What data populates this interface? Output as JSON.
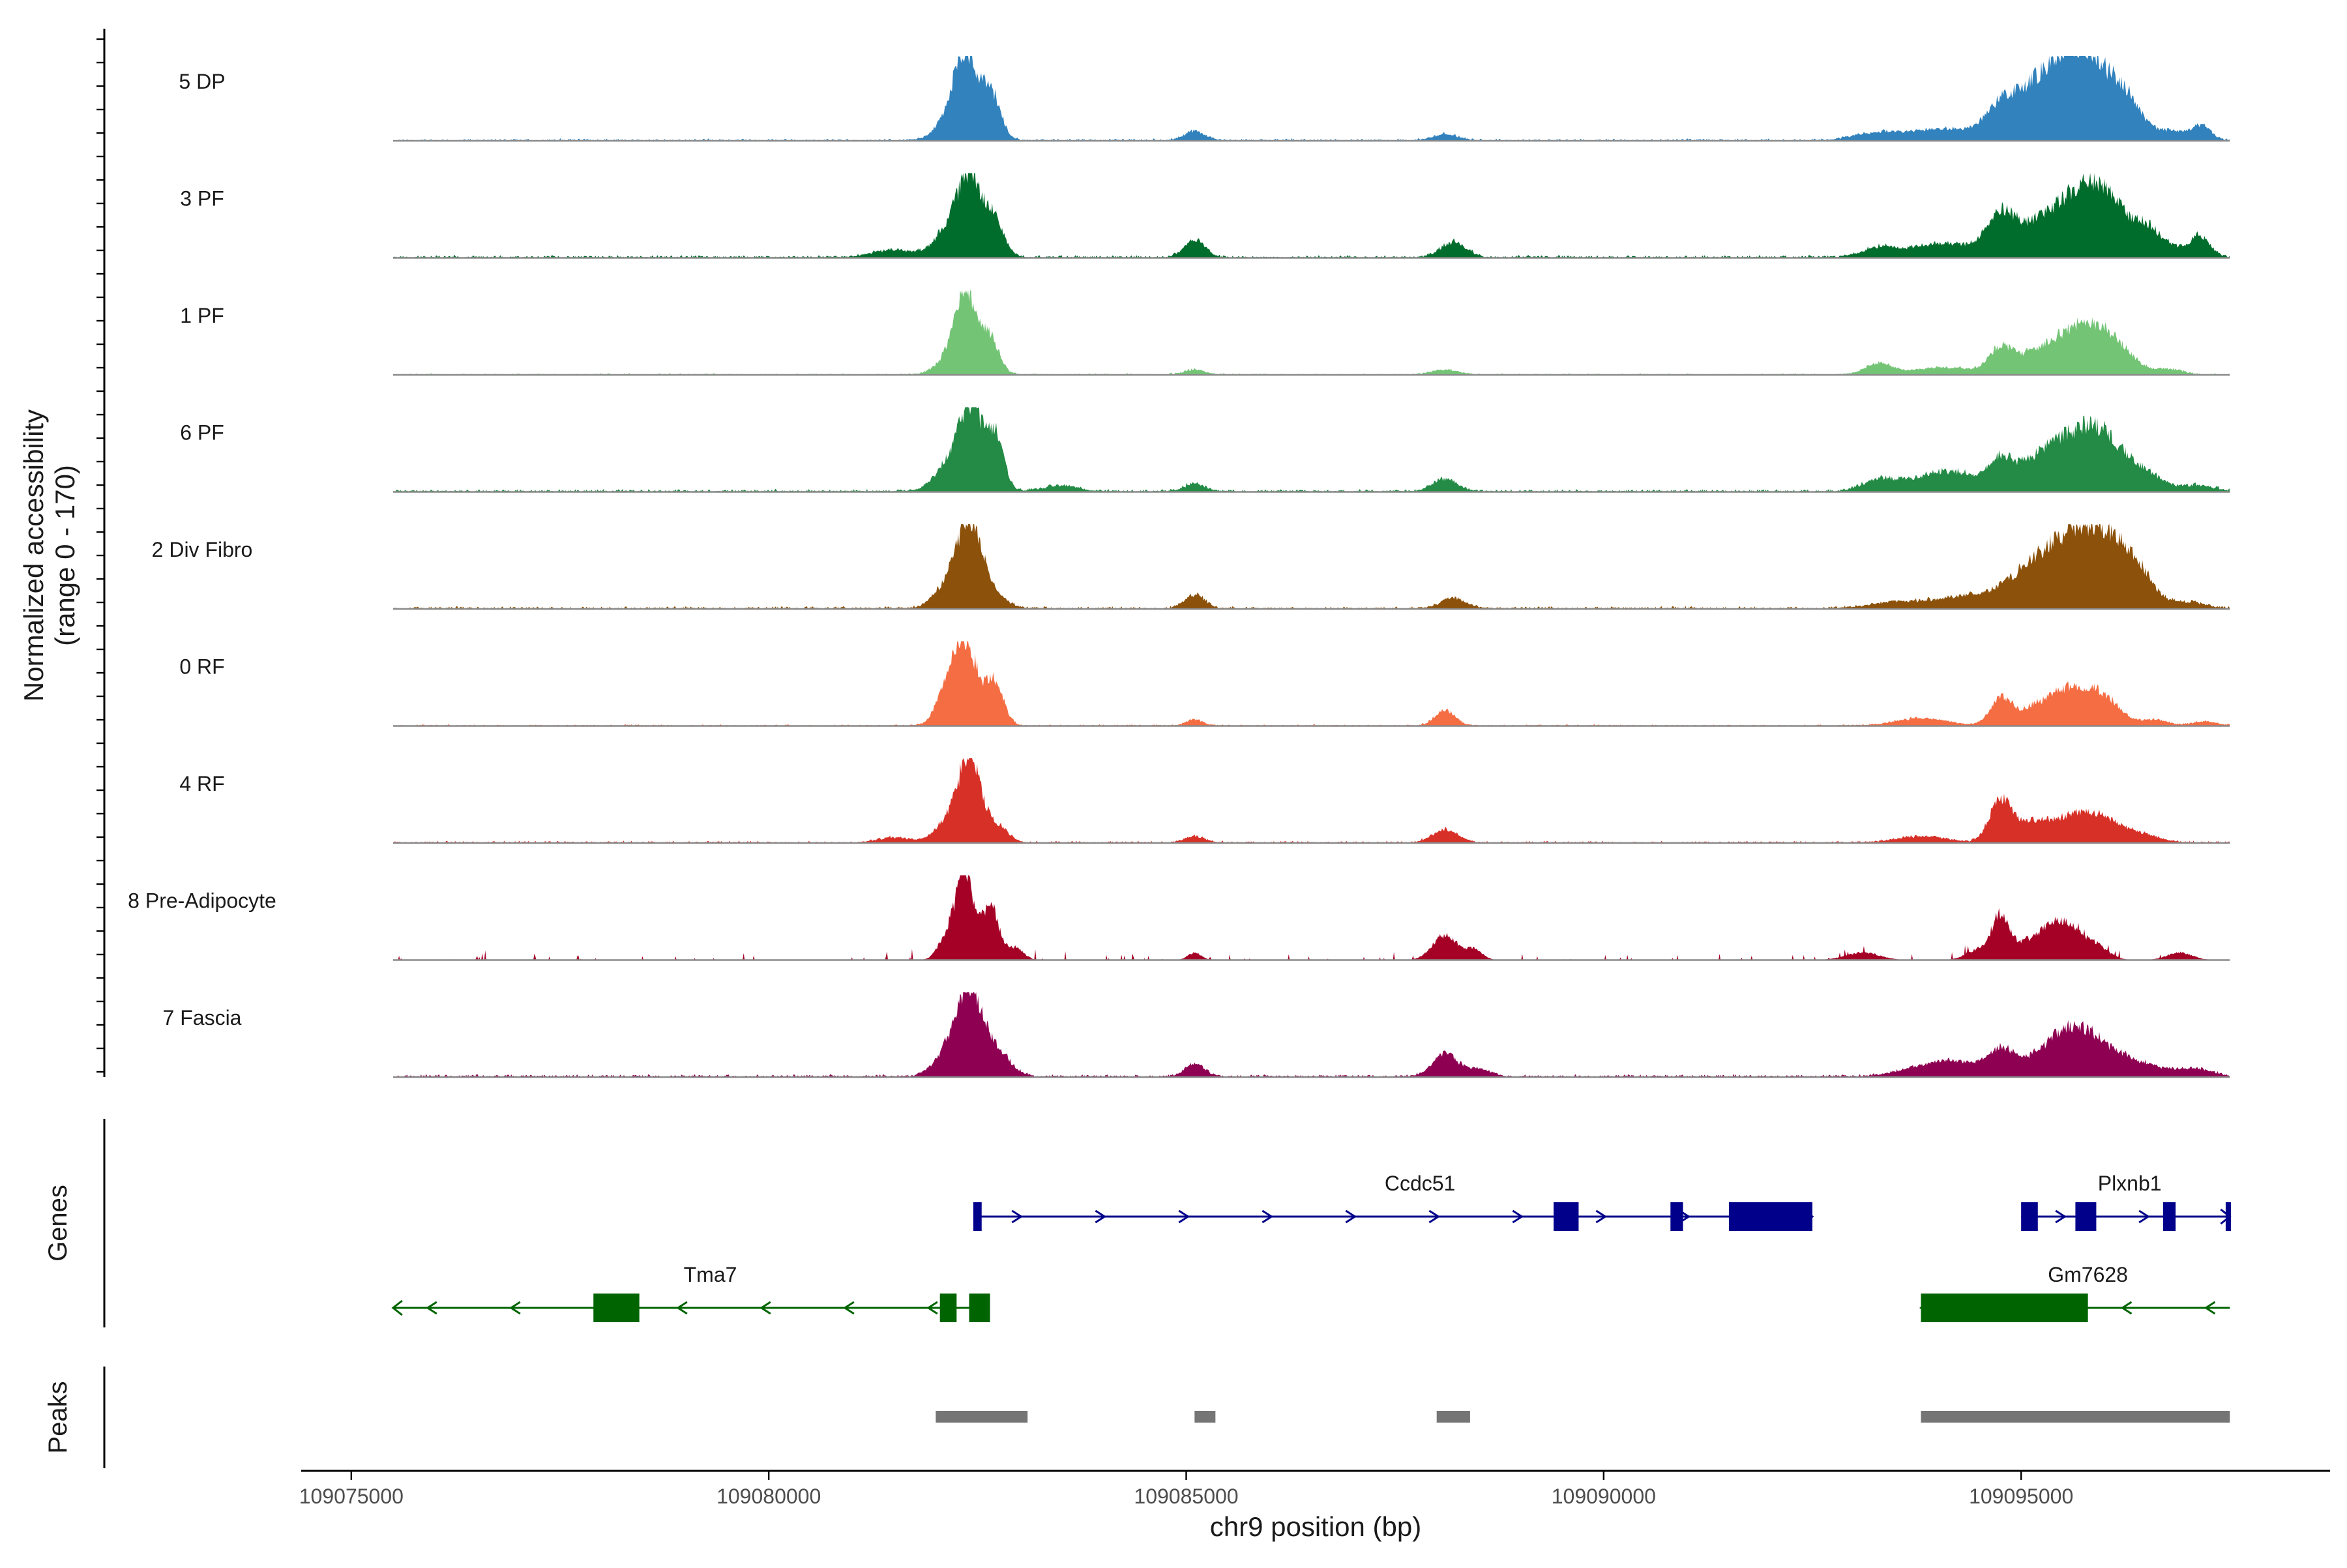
{
  "chart_data": {
    "type": "area",
    "title": "",
    "ylabel": "Normalized accessibility\n(range 0 - 170)",
    "ylabel_lines": [
      "Normalized accessibility",
      "(range 0 - 170)"
    ],
    "ylim": [
      0,
      170
    ],
    "xlabel": "chr9 position (bp)",
    "xlim": [
      109074400,
      109098700
    ],
    "x_ticks": [
      109075000,
      109080000,
      109085000,
      109090000,
      109095000
    ],
    "x_tick_labels": [
      "109075000",
      "109080000",
      "109085000",
      "109090000",
      "109095000"
    ],
    "track_range": [
      109075500,
      109097500
    ],
    "series": [
      {
        "name": "5 DP",
        "color": "#3182bd",
        "peaks": [
          [
            109082350,
            170,
            140
          ],
          [
            109082650,
            95,
            120
          ],
          [
            109082100,
            25,
            150
          ],
          [
            109085100,
            18,
            120
          ],
          [
            109088100,
            12,
            150
          ],
          [
            109093300,
            14,
            300
          ],
          [
            109094100,
            22,
            400
          ],
          [
            109094750,
            38,
            160
          ],
          [
            109095050,
            60,
            300
          ],
          [
            109095450,
            95,
            300
          ],
          [
            109095800,
            125,
            280
          ],
          [
            109096250,
            70,
            200
          ],
          [
            109096800,
            18,
            160
          ],
          [
            109097150,
            28,
            120
          ]
        ],
        "noise": 4,
        "seed": 11
      },
      {
        "name": "3 PF",
        "color": "#006d2c",
        "peaks": [
          [
            109082400,
            170,
            140
          ],
          [
            109082100,
            45,
            140
          ],
          [
            109082700,
            70,
            120
          ],
          [
            109081500,
            15,
            250
          ],
          [
            109085100,
            35,
            120
          ],
          [
            109088200,
            30,
            150
          ],
          [
            109093300,
            18,
            200
          ],
          [
            109094100,
            28,
            400
          ],
          [
            109094750,
            70,
            160
          ],
          [
            109095200,
            55,
            300
          ],
          [
            109095700,
            95,
            300
          ],
          [
            109096050,
            85,
            250
          ],
          [
            109096500,
            45,
            150
          ],
          [
            109096800,
            20,
            200
          ],
          [
            109097150,
            38,
            120
          ]
        ],
        "noise": 5,
        "seed": 23
      },
      {
        "name": "1 PF",
        "color": "#74c476",
        "peaks": [
          [
            109082350,
            170,
            130
          ],
          [
            109082650,
            70,
            110
          ],
          [
            109082100,
            20,
            140
          ],
          [
            109085100,
            10,
            120
          ],
          [
            109088100,
            10,
            150
          ],
          [
            109093300,
            22,
            150
          ],
          [
            109094100,
            14,
            400
          ],
          [
            109094750,
            45,
            130
          ],
          [
            109095150,
            35,
            250
          ],
          [
            109095700,
            85,
            300
          ],
          [
            109096100,
            45,
            250
          ],
          [
            109096800,
            10,
            150
          ]
        ],
        "noise": 3,
        "seed": 37
      },
      {
        "name": "6 PF",
        "color": "#238b45",
        "peaks": [
          [
            109082400,
            170,
            140
          ],
          [
            109082100,
            40,
            150
          ],
          [
            109082700,
            110,
            110
          ],
          [
            109083500,
            12,
            200
          ],
          [
            109085100,
            15,
            120
          ],
          [
            109088100,
            25,
            150
          ],
          [
            109093300,
            20,
            200
          ],
          [
            109094100,
            40,
            400
          ],
          [
            109094750,
            45,
            130
          ],
          [
            109095200,
            55,
            300
          ],
          [
            109095700,
            90,
            300
          ],
          [
            109096050,
            65,
            250
          ],
          [
            109096500,
            30,
            200
          ],
          [
            109097100,
            12,
            200
          ]
        ],
        "noise": 5,
        "seed": 41
      },
      {
        "name": "2 Div Fibro",
        "color": "#8c510a",
        "peaks": [
          [
            109082400,
            170,
            150
          ],
          [
            109082100,
            35,
            150
          ],
          [
            109082700,
            25,
            150
          ],
          [
            109085100,
            28,
            120
          ],
          [
            109088200,
            20,
            150
          ],
          [
            109093500,
            12,
            300
          ],
          [
            109094400,
            25,
            400
          ],
          [
            109095100,
            45,
            300
          ],
          [
            109095550,
            100,
            350
          ],
          [
            109096000,
            110,
            300
          ],
          [
            109096400,
            45,
            200
          ],
          [
            109097000,
            12,
            200
          ]
        ],
        "noise": 5,
        "seed": 53
      },
      {
        "name": "0 RF",
        "color": "#f46d43",
        "peaks": [
          [
            109082350,
            170,
            140
          ],
          [
            109082700,
            85,
            110
          ],
          [
            109082100,
            50,
            120
          ],
          [
            109085100,
            12,
            100
          ],
          [
            109088100,
            30,
            120
          ],
          [
            109093800,
            15,
            300
          ],
          [
            109094750,
            50,
            120
          ],
          [
            109095150,
            30,
            250
          ],
          [
            109095600,
            65,
            250
          ],
          [
            109096000,
            45,
            200
          ],
          [
            109096600,
            12,
            150
          ],
          [
            109097200,
            8,
            150
          ]
        ],
        "noise": 3,
        "seed": 67
      },
      {
        "name": "4 RF",
        "color": "#d73027",
        "peaks": [
          [
            109082400,
            170,
            140
          ],
          [
            109082100,
            30,
            140
          ],
          [
            109082750,
            30,
            120
          ],
          [
            109081500,
            10,
            200
          ],
          [
            109085100,
            12,
            120
          ],
          [
            109088100,
            25,
            150
          ],
          [
            109093800,
            12,
            300
          ],
          [
            109094750,
            80,
            130
          ],
          [
            109095100,
            30,
            200
          ],
          [
            109095600,
            45,
            300
          ],
          [
            109096000,
            35,
            250
          ],
          [
            109096500,
            12,
            200
          ]
        ],
        "noise": 4,
        "seed": 71
      },
      {
        "name": "8 Pre-Adipocyte",
        "color": "#a50026",
        "peaks": [
          [
            109082350,
            170,
            100
          ],
          [
            109082150,
            50,
            110
          ],
          [
            109082650,
            110,
            100
          ],
          [
            109082950,
            25,
            100
          ],
          [
            109085100,
            15,
            80
          ],
          [
            109088100,
            50,
            150
          ],
          [
            109088450,
            20,
            100
          ],
          [
            109093100,
            15,
            200
          ],
          [
            109094500,
            20,
            150
          ],
          [
            109094750,
            75,
            100
          ],
          [
            109095100,
            35,
            250
          ],
          [
            109095500,
            70,
            200
          ],
          [
            109095900,
            25,
            150
          ],
          [
            109096900,
            15,
            150
          ]
        ],
        "noise": 3,
        "seed": 83,
        "sparse": true
      },
      {
        "name": "7 Fascia",
        "color": "#8e0152",
        "peaks": [
          [
            109082400,
            170,
            160
          ],
          [
            109082100,
            35,
            150
          ],
          [
            109082750,
            45,
            150
          ],
          [
            109085100,
            25,
            120
          ],
          [
            109088100,
            45,
            150
          ],
          [
            109088500,
            15,
            150
          ],
          [
            109093800,
            15,
            300
          ],
          [
            109094250,
            25,
            300
          ],
          [
            109094750,
            45,
            160
          ],
          [
            109095200,
            30,
            250
          ],
          [
            109095600,
            80,
            250
          ],
          [
            109096000,
            45,
            250
          ],
          [
            109096500,
            20,
            250
          ],
          [
            109097100,
            15,
            200
          ]
        ],
        "noise": 5,
        "seed": 97
      }
    ]
  },
  "genes": {
    "title": "Genes",
    "items": [
      {
        "name": "Ccdc51",
        "strand": "+",
        "row": 1,
        "color": "#00008b",
        "start": 109082500,
        "end": 109092500,
        "exons": [
          [
            109082450,
            109082550
          ],
          [
            109089400,
            109089700
          ],
          [
            109090800,
            109090950
          ],
          [
            109091500,
            109092500
          ]
        ]
      },
      {
        "name": "Plxnb1",
        "strand": "+",
        "row": 1,
        "color": "#00008b",
        "start": 109095000,
        "end": 109097500,
        "exons": [
          [
            109095000,
            109095200
          ],
          [
            109095650,
            109095900
          ],
          [
            109096700,
            109096850
          ],
          [
            109097450,
            109097500
          ]
        ]
      },
      {
        "name": "Tma7",
        "strand": "-",
        "row": 2,
        "color": "#006400",
        "start": 109075500,
        "end": 109082500,
        "exons": [
          [
            109077900,
            109078450
          ],
          [
            109082050,
            109082250
          ],
          [
            109082400,
            109082650
          ]
        ]
      },
      {
        "name": "Gm7628",
        "strand": "-",
        "row": 2,
        "color": "#006400",
        "start": 109093800,
        "end": 109097500,
        "exons": [
          [
            109093800,
            109095800
          ]
        ]
      }
    ]
  },
  "peaks": {
    "title": "Peaks",
    "color": "#757575",
    "regions": [
      [
        109082000,
        109083100
      ],
      [
        109085100,
        109085350
      ],
      [
        109088000,
        109088400
      ],
      [
        109093800,
        109097500
      ]
    ]
  }
}
